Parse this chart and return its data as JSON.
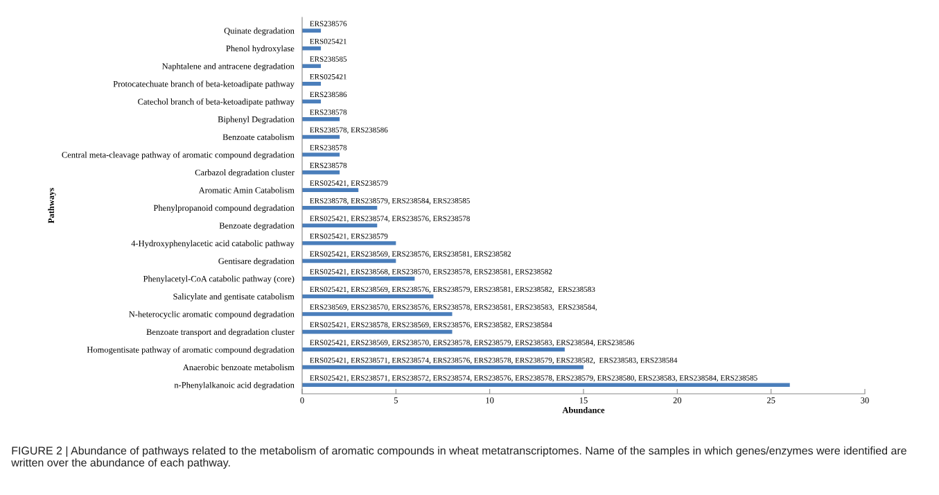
{
  "chart_data": {
    "type": "bar",
    "orientation": "horizontal",
    "xlabel": "Abundance",
    "ylabel": "Pathways",
    "categories": [
      "Quinate degradation",
      "Phenol hydroxylase",
      "Naphtalene and antracene degradation",
      "Protocatechuate branch of beta-ketoadipate pathway",
      "Catechol branch of beta-ketoadipate pathway",
      "Biphenyl Degradation",
      "Benzoate catabolism",
      "Central meta-cleavage pathway of aromatic compound degradation",
      "Carbazol degradation cluster",
      "Aromatic Amin Catabolism",
      "Phenylpropanoid compound degradation",
      "Benzoate degradation",
      "4-Hydroxyphenylacetic acid catabolic pathway",
      "Gentisare degradation",
      "Phenylacetyl-CoA catabolic pathway (core)",
      "Salicylate and gentisate catabolism",
      "N-heterocyclic aromatic compound degradation",
      "Benzoate transport and degradation cluster",
      "Homogentisate pathway of aromatic compound degradation",
      "Anaerobic benzoate metabolism",
      "n-Phenylalkanoic acid degradation"
    ],
    "values": [
      1,
      1,
      1,
      1,
      1,
      2,
      2,
      2,
      2,
      3,
      4,
      4,
      5,
      5,
      6,
      7,
      8,
      8,
      14,
      15,
      26
    ],
    "color": "#4a7ebb",
    "value_labels": [
      "ERS238576",
      "ERS025421",
      "ERS238585",
      "ERS025421",
      "ERS238586",
      "ERS238578",
      "ERS238578, ERS238586",
      "ERS238578",
      "ERS238578",
      "ERS025421, ERS238579",
      "ERS238578, ERS238579, ERS238584, ERS238585",
      "ERS025421, ERS238574, ERS238576, ERS238578",
      "ERS025421, ERS238579",
      "ERS025421, ERS238569, ERS238576, ERS238581, ERS238582",
      "ERS025421, ERS238568, ERS238570, ERS238578, ERS238581, ERS238582",
      "ERS025421, ERS238569, ERS238576, ERS238579, ERS238581, ERS238582,  ERS238583",
      "ERS238569, ERS238570, ERS238576, ERS238578, ERS238581, ERS238583,  ERS238584,",
      "ERS025421, ERS238578, ERS238569, ERS238576, ERS238582, ERS238584",
      "ERS025421, ERS238569, ERS238570, ERS238578, ERS238579, ERS238583, ERS238584, ERS238586",
      "ERS025421, ERS238571, ERS238574, ERS238576, ERS238578, ERS238579, ERS238582,  ERS238583, ERS238584",
      "ERS025421, ERS238571, ERS238572, ERS238574, ERS238576, ERS238578, ERS238579, ERS238580, ERS238583, ERS238584, ERS238585"
    ],
    "xlim": [
      0,
      30
    ],
    "xticks": [
      0,
      5,
      10,
      15,
      20,
      25,
      30
    ],
    "grid": false,
    "annotations": [
      "FIGURE 2 | Abundance of pathways related to the metabolism of aromatic compounds in wheat metatranscriptomes. Name of the samples in which genes/enzymes were identified are written over the abundance of each pathway."
    ]
  }
}
